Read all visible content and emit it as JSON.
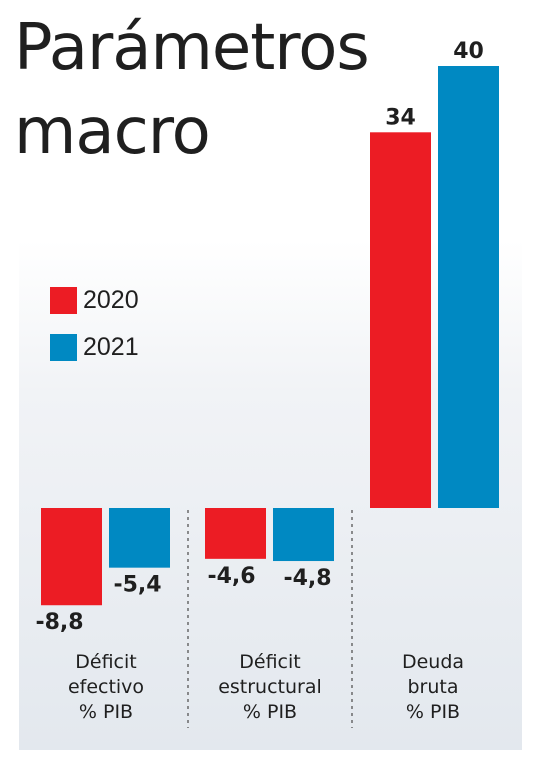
{
  "title_lines": [
    "Parámetros",
    "macro"
  ],
  "colors": {
    "s2020": "#ec1c24",
    "s2021": "#0089c2"
  },
  "chart_data": {
    "type": "bar",
    "title": "Parámetros macro",
    "categories": [
      [
        "Déficit",
        "efectivo",
        "% PIB"
      ],
      [
        "Déficit",
        "estructural",
        "% PIB"
      ],
      [
        "Deuda",
        "bruta",
        "% PIB"
      ]
    ],
    "series": [
      {
        "name": "2020",
        "color": "#ec1c24",
        "values": [
          -8.8,
          -4.6,
          34
        ],
        "labels": [
          "-8,8",
          "-4,6",
          "34"
        ]
      },
      {
        "name": "2021",
        "color": "#0089c2",
        "values": [
          -5.4,
          -4.8,
          40
        ],
        "labels": [
          "-5,4",
          "-4,8",
          "40"
        ]
      }
    ],
    "legend": "top-left",
    "grid": false
  }
}
